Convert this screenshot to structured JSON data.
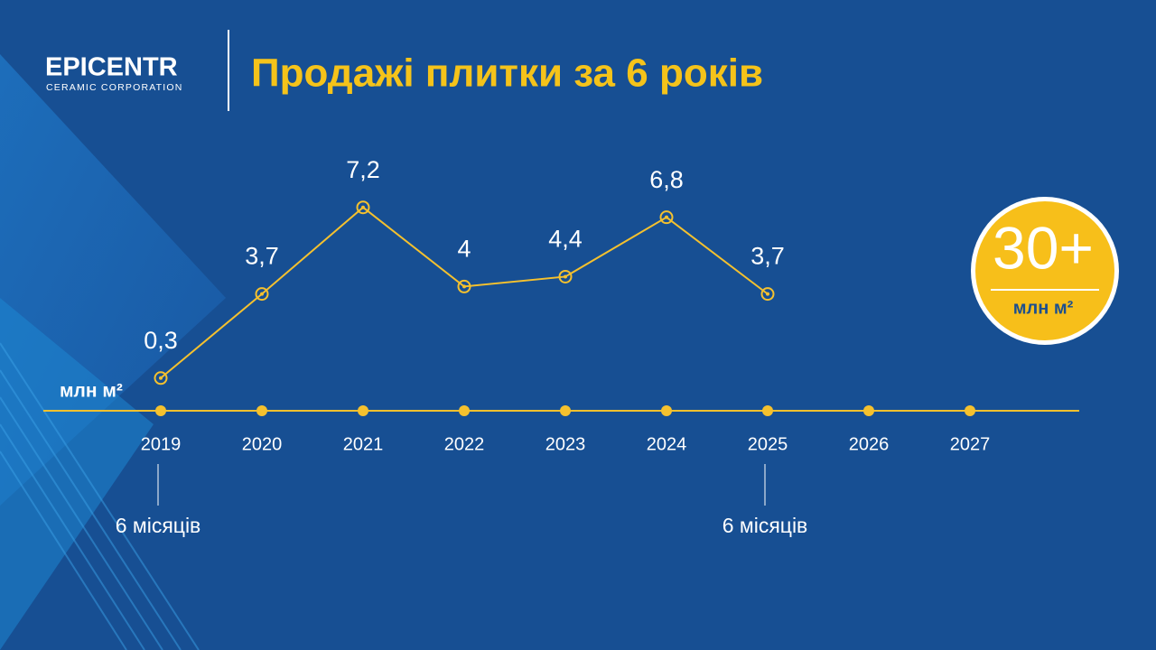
{
  "brand": {
    "name": "EPICENTR",
    "tagline": "CERAMIC CORPORATION"
  },
  "chart_data": {
    "type": "line",
    "title": "Продажі плитки за 6 років",
    "y_label": "млн м²",
    "categories": [
      "2019",
      "2020",
      "2021",
      "2022",
      "2023",
      "2024",
      "2025",
      "2026",
      "2027"
    ],
    "series": [
      {
        "color": "#f5c12e",
        "values": [
          0.3,
          3.7,
          7.2,
          4,
          4.4,
          6.8,
          3.7,
          null,
          null
        ],
        "value_labels": [
          "0,3",
          "3,7",
          "7,2",
          "4",
          "4,4",
          "6,8",
          "3,7",
          null,
          null
        ]
      }
    ],
    "ylim": [
      0,
      10
    ],
    "annotations": [
      "6 місяців",
      "6 місяців"
    ]
  },
  "badge": {
    "value": "30+",
    "unit": "млн м²"
  }
}
